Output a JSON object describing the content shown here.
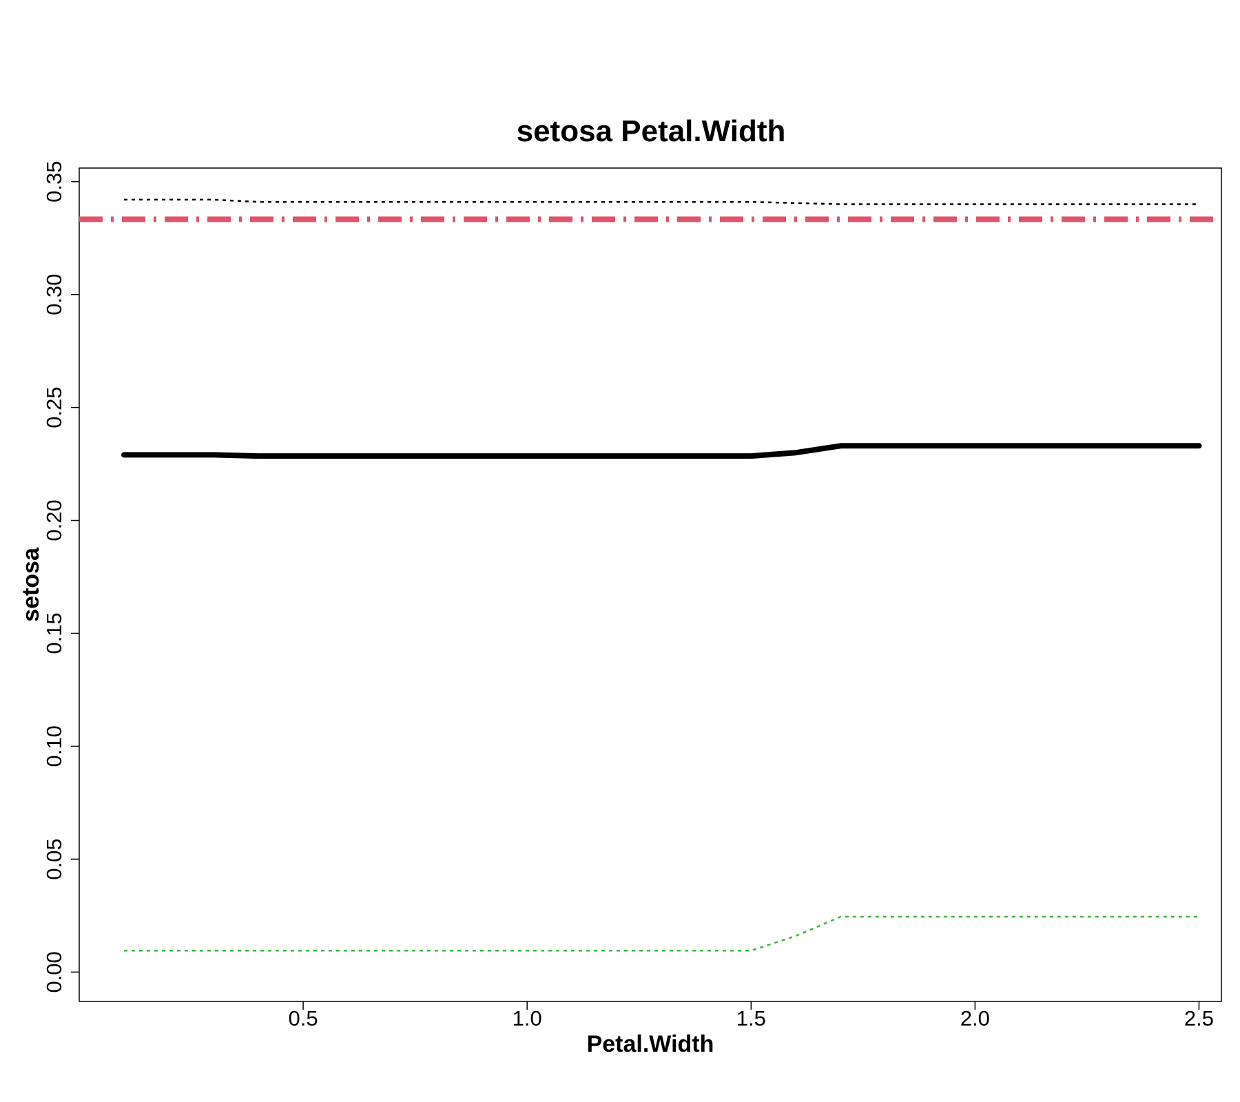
{
  "chart_data": {
    "type": "line",
    "title": "setosa  Petal.Width",
    "xlabel": "Petal.Width",
    "ylabel": "setosa",
    "xlim": [
      0.0,
      2.55
    ],
    "ylim": [
      -0.013,
      0.356
    ],
    "x_ticks": [
      0.5,
      1.0,
      1.5,
      2.0,
      2.5
    ],
    "x_tick_labels": [
      "0.5",
      "1.0",
      "1.5",
      "2.0",
      "2.5"
    ],
    "y_ticks": [
      0.0,
      0.05,
      0.1,
      0.15,
      0.2,
      0.25,
      0.3,
      0.35
    ],
    "y_tick_labels": [
      "0.00",
      "0.05",
      "0.10",
      "0.15",
      "0.20",
      "0.25",
      "0.30",
      "0.35"
    ],
    "grid": false,
    "legend": "none",
    "series": [
      {
        "style": "solid-thick",
        "color": "#000000",
        "x": [
          0.1,
          0.3,
          0.4,
          0.5,
          1.0,
          1.5,
          1.6,
          1.7,
          2.0,
          2.5
        ],
        "values": [
          0.229,
          0.229,
          0.2285,
          0.2285,
          0.2285,
          0.2285,
          0.23,
          0.233,
          0.233,
          0.233
        ]
      },
      {
        "style": "dotted",
        "color": "#000000",
        "x": [
          0.1,
          0.3,
          0.4,
          1.0,
          1.5,
          1.6,
          1.7,
          2.0,
          2.5
        ],
        "values": [
          0.342,
          0.342,
          0.341,
          0.341,
          0.341,
          0.3405,
          0.34,
          0.34,
          0.34
        ]
      },
      {
        "style": "dotted",
        "color": "#3cb43c",
        "x": [
          0.1,
          0.5,
          1.0,
          1.5,
          1.6,
          1.7,
          2.0,
          2.5
        ],
        "values": [
          0.0095,
          0.0095,
          0.0095,
          0.0095,
          0.016,
          0.0245,
          0.0245,
          0.0245
        ]
      },
      {
        "style": "dashdot-thick",
        "color": "#df536b",
        "x": [
          0.0,
          2.55
        ],
        "values": [
          0.3333,
          0.3333
        ]
      }
    ]
  }
}
